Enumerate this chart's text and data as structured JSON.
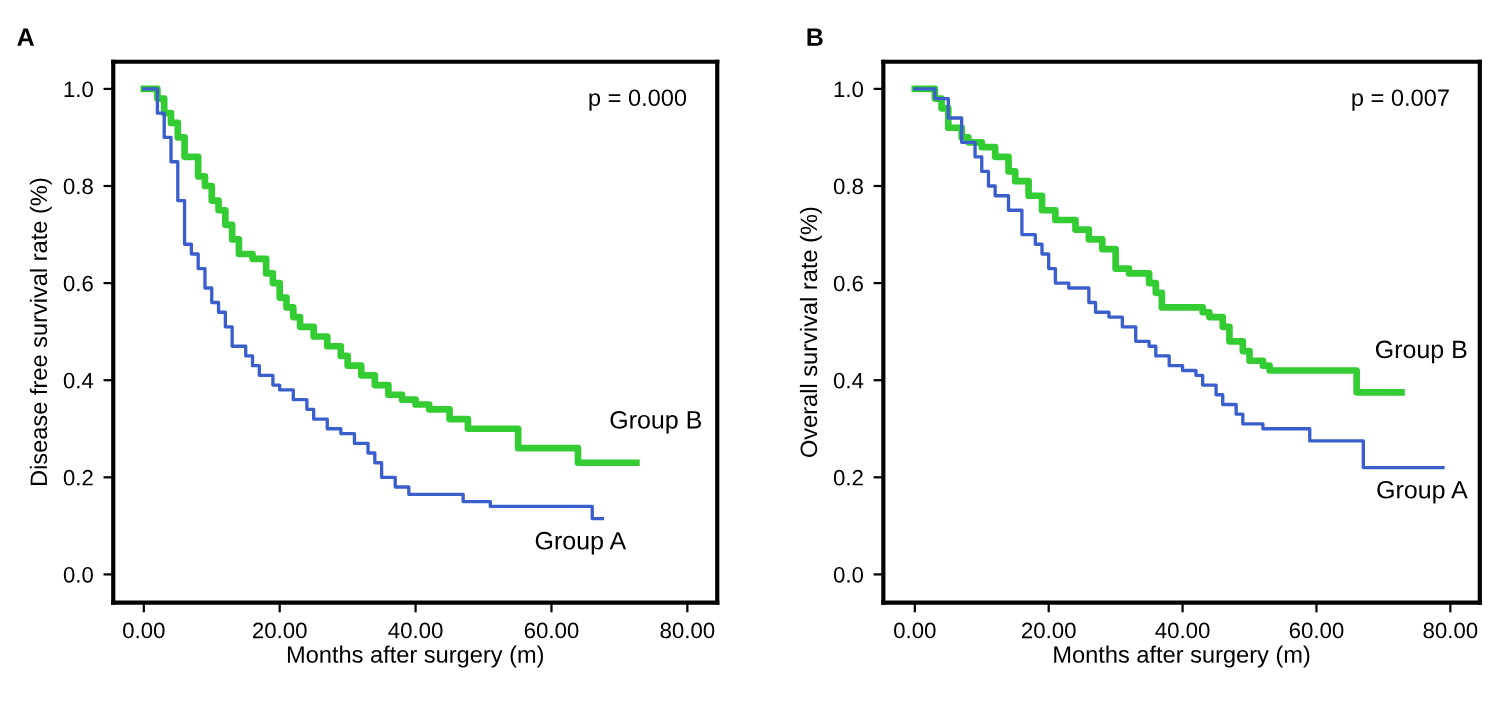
{
  "chart_data": [
    {
      "type": "step",
      "title": "A",
      "xlabel": "Months after surgery (m)",
      "ylabel": "Disease free survival rate (%)",
      "annotations": [
        "p = 0.000"
      ],
      "xlim": [
        -4.5,
        84.4
      ],
      "ylim": [
        -0.058,
        1.056
      ],
      "xticks": [
        {
          "value": 0,
          "label": "0.00"
        },
        {
          "value": 20,
          "label": "20.00"
        },
        {
          "value": 40,
          "label": "40.00"
        },
        {
          "value": 60,
          "label": "60.00"
        },
        {
          "value": 80,
          "label": "80.00"
        }
      ],
      "yticks": [
        {
          "value": 0,
          "label": "0.0"
        },
        {
          "value": 0.2,
          "label": "0.2"
        },
        {
          "value": 0.4,
          "label": "0.4"
        },
        {
          "value": 0.6,
          "label": "0.6"
        },
        {
          "value": 0.8,
          "label": "0.8"
        },
        {
          "value": 1,
          "label": "1.0"
        }
      ],
      "grid": false,
      "legend": false,
      "series": [
        {
          "name": "Group B",
          "color": "#33cc33",
          "x": [
            0,
            2,
            3,
            4,
            5,
            6,
            8,
            9,
            10,
            11,
            12,
            13,
            14,
            16,
            18,
            19,
            20,
            21,
            22,
            23,
            25,
            27,
            29,
            30,
            32,
            34,
            36,
            38,
            40,
            42,
            45,
            47.7,
            55.1,
            63.9,
            72.5
          ],
          "values": [
            1.0,
            0.98,
            0.95,
            0.93,
            0.9,
            0.86,
            0.82,
            0.8,
            0.77,
            0.75,
            0.72,
            0.69,
            0.66,
            0.65,
            0.62,
            0.6,
            0.57,
            0.55,
            0.53,
            0.51,
            0.49,
            0.47,
            0.45,
            0.43,
            0.41,
            0.39,
            0.37,
            0.36,
            0.35,
            0.34,
            0.32,
            0.3,
            0.26,
            0.23,
            0.23
          ]
        },
        {
          "name": "Group A",
          "color": "#3a5fcd",
          "x": [
            0,
            2,
            3,
            4,
            5,
            6,
            7,
            8,
            9,
            10,
            11,
            12,
            13,
            15,
            16,
            17,
            19,
            20,
            22,
            24,
            25,
            27,
            29,
            31,
            33,
            34,
            35,
            37,
            39,
            47,
            51,
            66,
            67.5
          ],
          "values": [
            1.0,
            0.95,
            0.9,
            0.85,
            0.77,
            0.68,
            0.66,
            0.63,
            0.59,
            0.56,
            0.54,
            0.51,
            0.47,
            0.45,
            0.43,
            0.41,
            0.39,
            0.38,
            0.36,
            0.34,
            0.32,
            0.3,
            0.29,
            0.27,
            0.25,
            0.23,
            0.2,
            0.18,
            0.165,
            0.15,
            0.14,
            0.115,
            0.115
          ]
        }
      ]
    },
    {
      "type": "step",
      "title": "B",
      "xlabel": "Months after surgery (m)",
      "ylabel": "Overall survival rate (%)",
      "annotations": [
        "p = 0.007"
      ],
      "xlim": [
        -4.7,
        84.4
      ],
      "ylim": [
        -0.058,
        1.056
      ],
      "xticks": [
        {
          "value": 0,
          "label": "0.00"
        },
        {
          "value": 20,
          "label": "20.00"
        },
        {
          "value": 40,
          "label": "40.00"
        },
        {
          "value": 60,
          "label": "60.00"
        },
        {
          "value": 80,
          "label": "80.00"
        }
      ],
      "yticks": [
        {
          "value": 0,
          "label": "0.0"
        },
        {
          "value": 0.2,
          "label": "0.2"
        },
        {
          "value": 0.4,
          "label": "0.4"
        },
        {
          "value": 0.6,
          "label": "0.6"
        },
        {
          "value": 0.8,
          "label": "0.8"
        },
        {
          "value": 1,
          "label": "1.0"
        }
      ],
      "grid": false,
      "legend": false,
      "series": [
        {
          "name": "Group B",
          "color": "#33cc33",
          "x": [
            0,
            3,
            4,
            5,
            7,
            8,
            10,
            12,
            14,
            15,
            17,
            19,
            21,
            24,
            26,
            28,
            30,
            32,
            35,
            36,
            36.9,
            43,
            44,
            46,
            47,
            49,
            50,
            52,
            53,
            66,
            72.7
          ],
          "values": [
            1.0,
            0.98,
            0.96,
            0.92,
            0.9,
            0.89,
            0.88,
            0.86,
            0.83,
            0.81,
            0.78,
            0.75,
            0.73,
            0.71,
            0.69,
            0.67,
            0.63,
            0.62,
            0.6,
            0.58,
            0.55,
            0.54,
            0.53,
            0.51,
            0.48,
            0.46,
            0.44,
            0.43,
            0.42,
            0.375,
            0.375
          ]
        },
        {
          "name": "Group A",
          "color": "#3a5fcd",
          "x": [
            0,
            3,
            5,
            7,
            9,
            10,
            11,
            12,
            14,
            16,
            18,
            19,
            20,
            21,
            23,
            26,
            27,
            29,
            31,
            33,
            35,
            36,
            38,
            40,
            42,
            43,
            45,
            46,
            48,
            49,
            52,
            59,
            67,
            78.9
          ],
          "values": [
            1.0,
            0.98,
            0.94,
            0.89,
            0.86,
            0.83,
            0.8,
            0.78,
            0.75,
            0.7,
            0.68,
            0.66,
            0.63,
            0.6,
            0.59,
            0.56,
            0.54,
            0.53,
            0.51,
            0.48,
            0.47,
            0.45,
            0.43,
            0.42,
            0.41,
            0.39,
            0.37,
            0.35,
            0.33,
            0.31,
            0.3,
            0.275,
            0.22,
            0.22
          ]
        }
      ]
    }
  ]
}
